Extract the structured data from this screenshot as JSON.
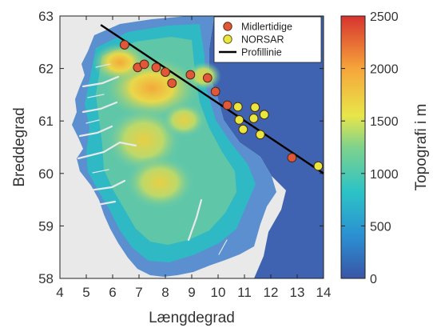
{
  "chart_data": {
    "type": "scatter",
    "title": "",
    "xlabel": "Længdegrad",
    "ylabel": "Breddegrad",
    "xlim": [
      4,
      14
    ],
    "ylim": [
      58,
      63
    ],
    "xticks": [
      "4",
      "5",
      "6",
      "7",
      "8",
      "9",
      "10",
      "11",
      "12",
      "13",
      "14"
    ],
    "yticks": [
      "58",
      "59",
      "60",
      "61",
      "62",
      "63"
    ],
    "background": "topography map of southern Norway (shaded relief, colored by elevation)",
    "series": [
      {
        "name": "Midlertidige",
        "marker": "circle",
        "color": "#e2573a",
        "points": [
          {
            "x": 6.45,
            "y": 62.45
          },
          {
            "x": 6.95,
            "y": 62.02
          },
          {
            "x": 7.2,
            "y": 62.08
          },
          {
            "x": 7.65,
            "y": 62.02
          },
          {
            "x": 8.0,
            "y": 61.93
          },
          {
            "x": 8.25,
            "y": 61.72
          },
          {
            "x": 8.95,
            "y": 61.88
          },
          {
            "x": 9.6,
            "y": 61.82
          },
          {
            "x": 9.9,
            "y": 61.56
          },
          {
            "x": 10.35,
            "y": 61.3
          },
          {
            "x": 12.8,
            "y": 60.3
          }
        ]
      },
      {
        "name": "NORSAR",
        "marker": "circle",
        "color": "#e9e640",
        "points": [
          {
            "x": 10.75,
            "y": 61.27
          },
          {
            "x": 11.4,
            "y": 61.26
          },
          {
            "x": 11.75,
            "y": 61.12
          },
          {
            "x": 10.8,
            "y": 61.02
          },
          {
            "x": 11.35,
            "y": 61.05
          },
          {
            "x": 10.95,
            "y": 60.84
          },
          {
            "x": 11.6,
            "y": 60.74
          },
          {
            "x": 13.8,
            "y": 60.14
          }
        ]
      },
      {
        "name": "Profillinie",
        "marker": "line",
        "color": "#000000",
        "points": [
          {
            "x": 5.55,
            "y": 62.83
          },
          {
            "x": 14.0,
            "y": 60.0
          }
        ]
      }
    ],
    "legend": {
      "placement": "top-right",
      "entries": [
        "Midlertidige",
        "NORSAR",
        "Profillinie"
      ]
    },
    "colorbar": {
      "label": "Topografi i m",
      "min": 0,
      "max": 2500,
      "ticks": [
        "0",
        "500",
        "1000",
        "1500",
        "2000",
        "2500"
      ],
      "colors": [
        "#3a55a6",
        "#2b8fd2",
        "#2cc3c6",
        "#7fd28c",
        "#e8e64a",
        "#f6a53a",
        "#d7332f"
      ]
    },
    "grid": false
  }
}
